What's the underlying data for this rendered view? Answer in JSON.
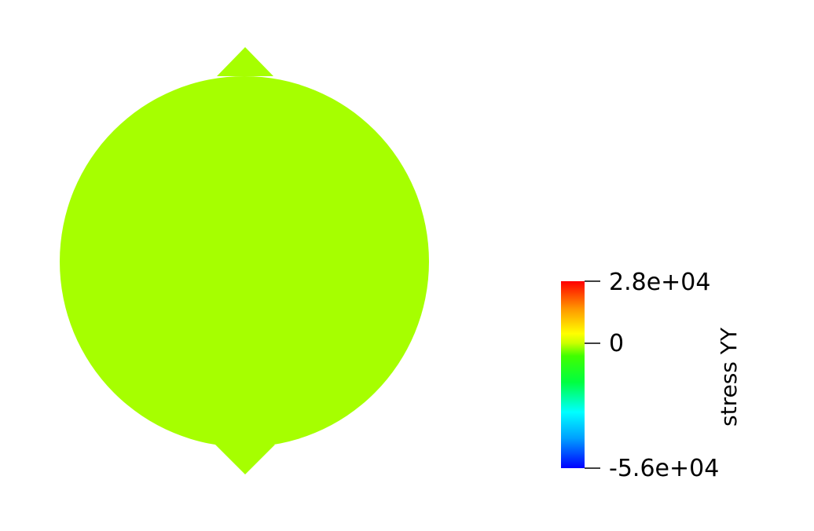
{
  "colorbar": {
    "title": "stress  YY",
    "labels": {
      "max": "2.8e+04",
      "mid": "0",
      "min": "-5.6e+04"
    },
    "range": [
      -56000,
      28000
    ],
    "mid_value": 0,
    "colormap_stops": [
      "#0000ff",
      "#00ffff",
      "#00ff00",
      "#ffff00",
      "#ff0000"
    ]
  },
  "geometry_colors": {
    "disk": "#a6ff00",
    "platens": "#a6ff00"
  }
}
